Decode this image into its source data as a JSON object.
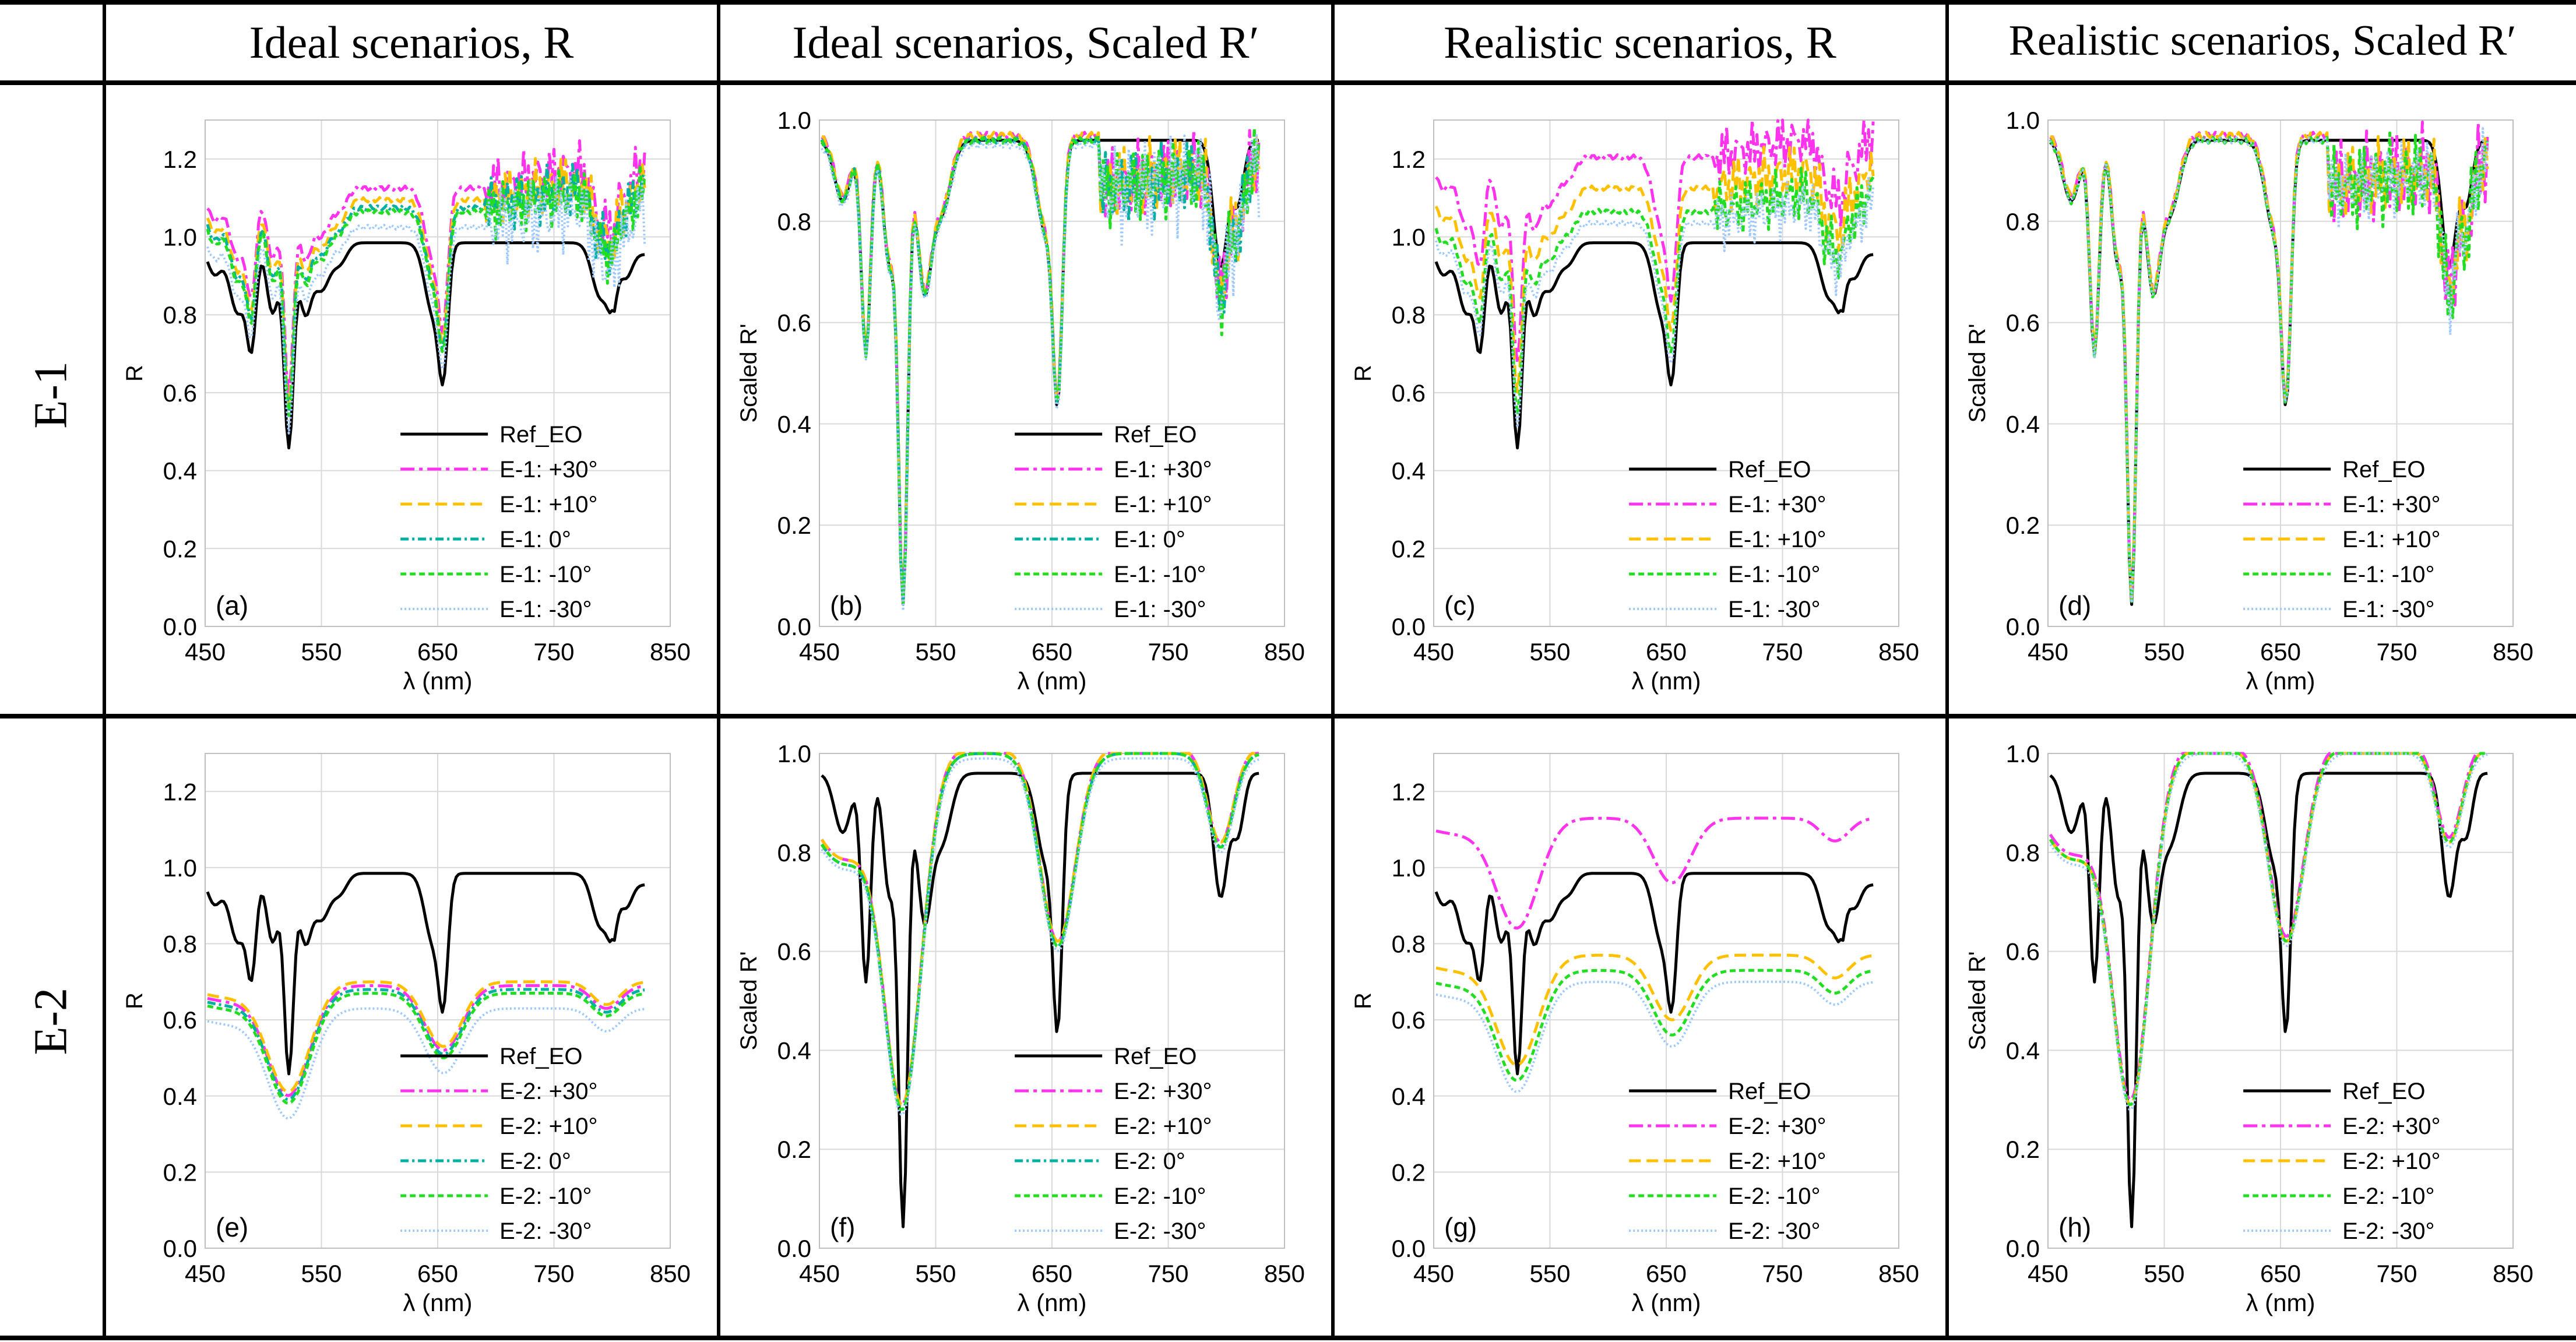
{
  "table": {
    "columns": [
      "Ideal scenarios, R",
      "Ideal scenarios, Scaled R′",
      "Realistic scenarios, R",
      "Realistic scenarios, Scaled R′"
    ],
    "rows": [
      "E-1",
      "E-2"
    ]
  },
  "colors": {
    "ref": "#000000",
    "p30": "#ff33ee",
    "p10": "#ffc000",
    "z0": "#00b0a0",
    "m10": "#22dd22",
    "m30": "#9ec9ff",
    "grid": "#d9d9d9"
  },
  "chart_data": [
    {
      "id": "a",
      "type": "line",
      "label": "(a)",
      "row": "E-1",
      "column": "Ideal scenarios, R",
      "xlabel": "λ (nm)",
      "ylabel": "R",
      "xlim": [
        450,
        850
      ],
      "ylim": [
        0,
        1.3
      ],
      "xticks": [
        450,
        550,
        650,
        750,
        850
      ],
      "yticks": [
        0.0,
        0.2,
        0.4,
        0.6,
        0.8,
        1.0,
        1.2
      ],
      "legend": [
        "Ref_EO",
        "E-1: +30°",
        "E-1: +10°",
        "E-1: 0°",
        "E-1: -10°",
        "E-1: -30°"
      ],
      "series": [
        {
          "name": "Ref_EO",
          "offset": 0,
          "ripple": 0.01
        },
        {
          "name": "E-1: +30°",
          "offset": 0.14,
          "ripple": 0.05
        },
        {
          "name": "E-1: +10°",
          "offset": 0.11,
          "ripple": 0.05
        },
        {
          "name": "E-1: 0°",
          "offset": 0.09,
          "ripple": 0.05
        },
        {
          "name": "E-1: -10°",
          "offset": 0.08,
          "ripple": 0.05
        },
        {
          "name": "E-1: -30°",
          "offset": 0.04,
          "ripple": 0.07
        }
      ]
    },
    {
      "id": "b",
      "type": "line",
      "label": "(b)",
      "row": "E-1",
      "column": "Ideal scenarios, Scaled R′",
      "xlabel": "λ (nm)",
      "ylabel": "Scaled R'",
      "xlim": [
        450,
        850
      ],
      "ylim": [
        0,
        1.0
      ],
      "xticks": [
        450,
        550,
        650,
        750,
        850
      ],
      "yticks": [
        0.0,
        0.2,
        0.4,
        0.6,
        0.8,
        1.0
      ],
      "legend": [
        "Ref_EO",
        "E-1: +30°",
        "E-1: +10°",
        "E-1: 0°",
        "E-1: -10°",
        "E-1: -30°"
      ],
      "series": [
        {
          "name": "Ref_EO",
          "offset": 0,
          "ripple": 0.01
        },
        {
          "name": "E-1: +30°",
          "offset": 0.01,
          "ripple": 0.05
        },
        {
          "name": "E-1: +10°",
          "offset": 0.01,
          "ripple": 0.05
        },
        {
          "name": "E-1: 0°",
          "offset": 0,
          "ripple": 0.05
        },
        {
          "name": "E-1: -10°",
          "offset": 0,
          "ripple": 0.05
        },
        {
          "name": "E-1: -30°",
          "offset": -0.01,
          "ripple": 0.07
        }
      ]
    },
    {
      "id": "c",
      "type": "line",
      "label": "(c)",
      "row": "E-1",
      "column": "Realistic scenarios, R",
      "xlabel": "λ (nm)",
      "ylabel": "R",
      "xlim": [
        450,
        850
      ],
      "ylim": [
        0,
        1.3
      ],
      "xticks": [
        450,
        550,
        650,
        750,
        850
      ],
      "yticks": [
        0.0,
        0.2,
        0.4,
        0.6,
        0.8,
        1.0,
        1.2
      ],
      "legend": [
        "Ref_EO",
        "E-1: +30°",
        "E-1: +10°",
        "E-1: -10°",
        "E-1: -30°"
      ],
      "series": [
        {
          "name": "Ref_EO",
          "offset": 0,
          "ripple": 0.01
        },
        {
          "name": "E-1: +30°",
          "offset": 0.22,
          "ripple": 0.05
        },
        {
          "name": "E-1: +10°",
          "offset": 0.14,
          "ripple": 0.05
        },
        {
          "name": "E-1: -10°",
          "offset": 0.08,
          "ripple": 0.05
        },
        {
          "name": "E-1: -30°",
          "offset": 0.05,
          "ripple": 0.05
        }
      ]
    },
    {
      "id": "d",
      "type": "line",
      "label": "(d)",
      "row": "E-1",
      "column": "Realistic scenarios, Scaled R′",
      "xlabel": "λ (nm)",
      "ylabel": "Scaled R'",
      "xlim": [
        450,
        850
      ],
      "ylim": [
        0,
        1.0
      ],
      "xticks": [
        450,
        550,
        650,
        750,
        850
      ],
      "yticks": [
        0.0,
        0.2,
        0.4,
        0.6,
        0.8,
        1.0
      ],
      "legend": [
        "Ref_EO",
        "E-1: +30°",
        "E-1: +10°",
        "E-1: -10°",
        "E-1: -30°"
      ],
      "series": [
        {
          "name": "Ref_EO",
          "offset": 0,
          "ripple": 0.01
        },
        {
          "name": "E-1: +30°",
          "offset": 0.01,
          "ripple": 0.06
        },
        {
          "name": "E-1: +10°",
          "offset": 0.01,
          "ripple": 0.05
        },
        {
          "name": "E-1: -10°",
          "offset": 0,
          "ripple": 0.06
        },
        {
          "name": "E-1: -30°",
          "offset": 0,
          "ripple": 0.05
        }
      ]
    },
    {
      "id": "e",
      "type": "line",
      "label": "(e)",
      "row": "E-2",
      "column": "Ideal scenarios, R",
      "xlabel": "λ (nm)",
      "ylabel": "R",
      "xlim": [
        450,
        850
      ],
      "ylim": [
        0,
        1.3
      ],
      "xticks": [
        450,
        550,
        650,
        750,
        850
      ],
      "yticks": [
        0.0,
        0.2,
        0.4,
        0.6,
        0.8,
        1.0,
        1.2
      ],
      "legend": [
        "Ref_EO",
        "E-2: +30°",
        "E-2: +10°",
        "E-2: 0°",
        "E-2: -10°",
        "E-2: -30°"
      ],
      "series": [
        {
          "name": "Ref_EO",
          "offset": 0,
          "ripple": 0.01
        },
        {
          "name": "E-2: +30°",
          "offset": -0.15,
          "ripple": 0
        },
        {
          "name": "E-2: +10°",
          "offset": -0.14,
          "ripple": 0
        },
        {
          "name": "E-2: 0°",
          "offset": -0.16,
          "ripple": 0
        },
        {
          "name": "E-2: -10°",
          "offset": -0.17,
          "ripple": 0
        },
        {
          "name": "E-2: -30°",
          "offset": -0.21,
          "ripple": 0
        }
      ]
    },
    {
      "id": "f",
      "type": "line",
      "label": "(f)",
      "row": "E-2",
      "column": "Ideal scenarios, Scaled R′",
      "xlabel": "λ (nm)",
      "ylabel": "Scaled R'",
      "xlim": [
        450,
        850
      ],
      "ylim": [
        0,
        1.0
      ],
      "xticks": [
        450,
        550,
        650,
        750,
        850
      ],
      "yticks": [
        0.0,
        0.2,
        0.4,
        0.6,
        0.8,
        1.0
      ],
      "legend": [
        "Ref_EO",
        "E-2: +30°",
        "E-2: +10°",
        "E-2: 0°",
        "E-2: -10°",
        "E-2: -30°"
      ],
      "series": [
        {
          "name": "Ref_EO",
          "offset": 0,
          "ripple": 0.01
        },
        {
          "name": "E-2: +30°",
          "offset": 0.02,
          "ripple": 0
        },
        {
          "name": "E-2: +10°",
          "offset": 0.02,
          "ripple": 0
        },
        {
          "name": "E-2: 0°",
          "offset": 0.01,
          "ripple": 0
        },
        {
          "name": "E-2: -10°",
          "offset": 0.01,
          "ripple": 0
        },
        {
          "name": "E-2: -30°",
          "offset": 0,
          "ripple": 0
        }
      ]
    },
    {
      "id": "g",
      "type": "line",
      "label": "(g)",
      "row": "E-2",
      "column": "Realistic scenarios, R",
      "xlabel": "λ (nm)",
      "ylabel": "R",
      "xlim": [
        450,
        850
      ],
      "ylim": [
        0,
        1.3
      ],
      "xticks": [
        450,
        550,
        650,
        750,
        850
      ],
      "yticks": [
        0.0,
        0.2,
        0.4,
        0.6,
        0.8,
        1.0,
        1.2
      ],
      "legend": [
        "Ref_EO",
        "E-2: +30°",
        "E-2: +10°",
        "E-2: -10°",
        "E-2: -30°"
      ],
      "series": [
        {
          "name": "Ref_EO",
          "offset": 0,
          "ripple": 0.01
        },
        {
          "name": "E-2: +30°",
          "offset": 0.15,
          "ripple": 0
        },
        {
          "name": "E-2: +10°",
          "offset": -0.07,
          "ripple": 0
        },
        {
          "name": "E-2: -10°",
          "offset": -0.11,
          "ripple": 0
        },
        {
          "name": "E-2: -30°",
          "offset": -0.14,
          "ripple": 0
        }
      ]
    },
    {
      "id": "h",
      "type": "line",
      "label": "(h)",
      "row": "E-2",
      "column": "Realistic scenarios, Scaled R′",
      "xlabel": "λ (nm)",
      "ylabel": "Scaled R'",
      "xlim": [
        450,
        850
      ],
      "ylim": [
        0,
        1.0
      ],
      "xticks": [
        450,
        550,
        650,
        750,
        850
      ],
      "yticks": [
        0.0,
        0.2,
        0.4,
        0.6,
        0.8,
        1.0
      ],
      "legend": [
        "Ref_EO",
        "E-2: +30°",
        "E-2: +10°",
        "E-2: -10°",
        "E-2: -30°"
      ],
      "series": [
        {
          "name": "Ref_EO",
          "offset": 0,
          "ripple": 0.01
        },
        {
          "name": "E-2: +30°",
          "offset": 0.03,
          "ripple": 0
        },
        {
          "name": "E-2: +10°",
          "offset": 0.02,
          "ripple": 0
        },
        {
          "name": "E-2: -10°",
          "offset": 0.02,
          "ripple": 0
        },
        {
          "name": "E-2: -30°",
          "offset": 0.01,
          "ripple": 0
        }
      ]
    }
  ]
}
